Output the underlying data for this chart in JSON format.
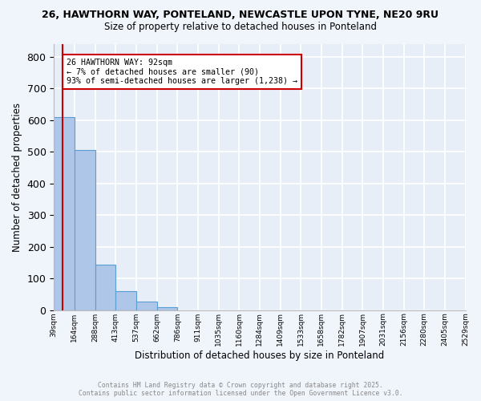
{
  "title_line1": "26, HAWTHORN WAY, PONTELAND, NEWCASTLE UPON TYNE, NE20 9RU",
  "title_line2": "Size of property relative to detached houses in Ponteland",
  "xlabel": "Distribution of detached houses by size in Ponteland",
  "ylabel": "Number of detached properties",
  "bin_labels": [
    "39sqm",
    "164sqm",
    "288sqm",
    "413sqm",
    "537sqm",
    "662sqm",
    "786sqm",
    "911sqm",
    "1035sqm",
    "1160sqm",
    "1284sqm",
    "1409sqm",
    "1533sqm",
    "1658sqm",
    "1782sqm",
    "1907sqm",
    "2031sqm",
    "2156sqm",
    "2280sqm",
    "2405sqm",
    "2529sqm"
  ],
  "bar_heights": [
    610,
    505,
    143,
    60,
    27,
    10,
    0,
    0,
    0,
    0,
    0,
    0,
    0,
    0,
    0,
    0,
    0,
    0,
    0,
    0
  ],
  "bar_color": "#aec6e8",
  "bar_edge_color": "#5a9fd4",
  "background_color": "#e8eef8",
  "grid_color": "#ffffff",
  "marker_color": "#cc0000",
  "annotation_title": "26 HAWTHORN WAY: 92sqm",
  "annotation_line2": "← 7% of detached houses are smaller (90)",
  "annotation_line3": "93% of semi-detached houses are larger (1,238) →",
  "annotation_box_color": "#ffffff",
  "annotation_box_edge": "#cc0000",
  "ylim": [
    0,
    840
  ],
  "yticks": [
    0,
    100,
    200,
    300,
    400,
    500,
    600,
    700,
    800
  ],
  "footer_line1": "Contains HM Land Registry data © Crown copyright and database right 2025.",
  "footer_line2": "Contains public sector information licensed under the Open Government Licence v3.0."
}
